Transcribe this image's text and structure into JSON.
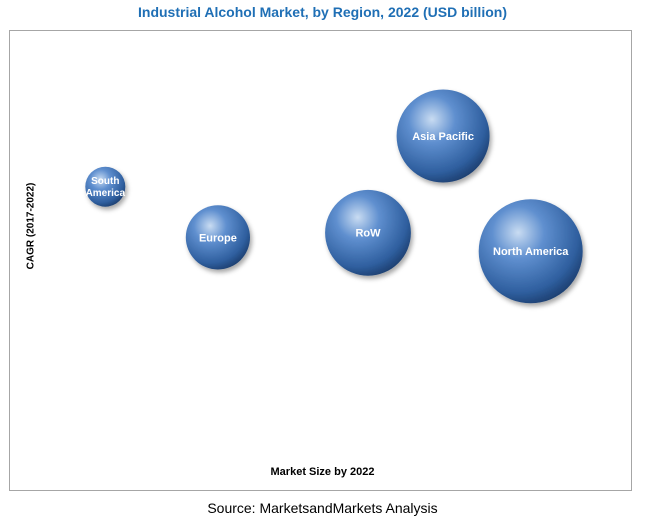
{
  "chart_data": {
    "type": "scatter",
    "title": "Industrial Alcohol Market, by Region, 2022 (USD billion)",
    "xlabel": "Market Size by 2022",
    "ylabel": "CAGR (2017-2022)",
    "source": "Source: MarketsandMarkets Analysis",
    "bubble_color": "#3e6fb0",
    "series": [
      {
        "label_lines": [
          "South",
          "America"
        ],
        "market_size": 0.9,
        "cagr": 0.66,
        "bubble_size": 1.0
      },
      {
        "label_lines": [
          "Europe"
        ],
        "market_size": 2.7,
        "cagr": 0.55,
        "bubble_size": 3.8
      },
      {
        "label_lines": [
          "RoW"
        ],
        "market_size": 5.1,
        "cagr": 0.56,
        "bubble_size": 6.8
      },
      {
        "label_lines": [
          "Asia Pacific"
        ],
        "market_size": 6.3,
        "cagr": 0.77,
        "bubble_size": 8.0
      },
      {
        "label_lines": [
          "North America"
        ],
        "market_size": 7.7,
        "cagr": 0.52,
        "bubble_size": 10.0
      }
    ]
  }
}
